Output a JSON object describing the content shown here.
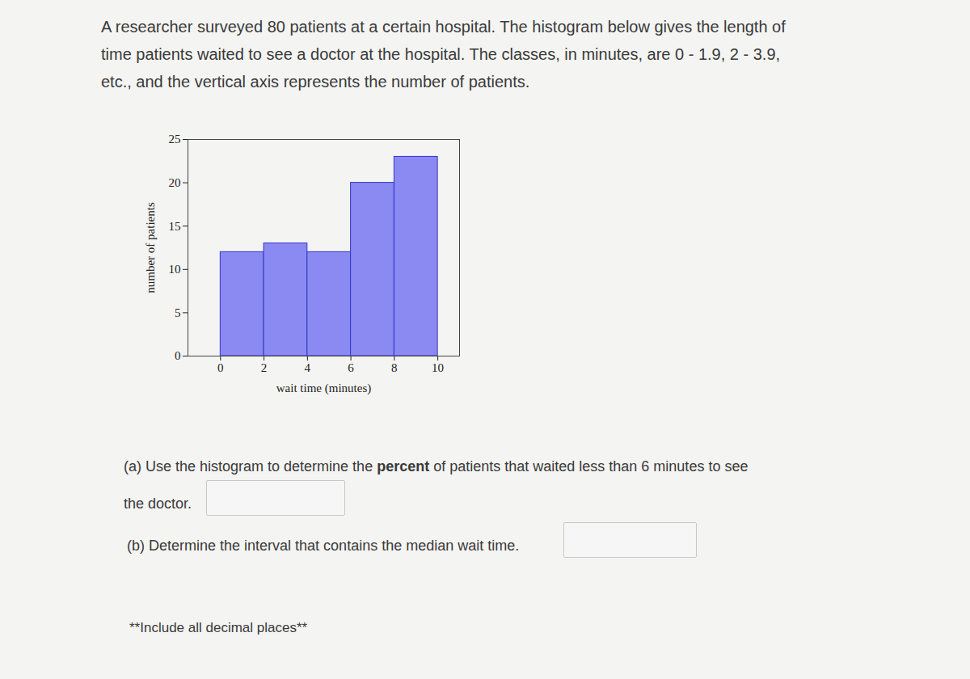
{
  "chart_data": {
    "type": "histogram",
    "bins": [
      0,
      2,
      4,
      6,
      8,
      10
    ],
    "values": [
      12,
      13,
      12,
      20,
      23
    ],
    "color": "#8a8af2",
    "xlim": [
      -1.5,
      11
    ],
    "ylim": [
      0,
      25
    ],
    "xticks": [
      0,
      2,
      4,
      6,
      8,
      10
    ],
    "yticks": [
      0,
      5,
      10,
      15,
      20,
      25
    ],
    "x_label": "wait time (minutes)",
    "y_label": "number of patients"
  },
  "question": {
    "intro": [
      "A researcher surveyed 80 patients at a certain hospital. The histogram below gives the length of",
      "time patients waited to see a doctor at the hospital. The classes, in minutes, are 0 - 1.9, 2 - 3.9,",
      "etc., and the vertical axis represents the number of patients."
    ],
    "part_a": [
      "(a) Use the histogram to determine the percent of patients that waited less than 6 minutes to see",
      "the doctor."
    ],
    "part_a_bold": "percent",
    "part_b": "(b) Determine the interval that contains the median wait time.",
    "note": "**Include all decimal places**"
  }
}
